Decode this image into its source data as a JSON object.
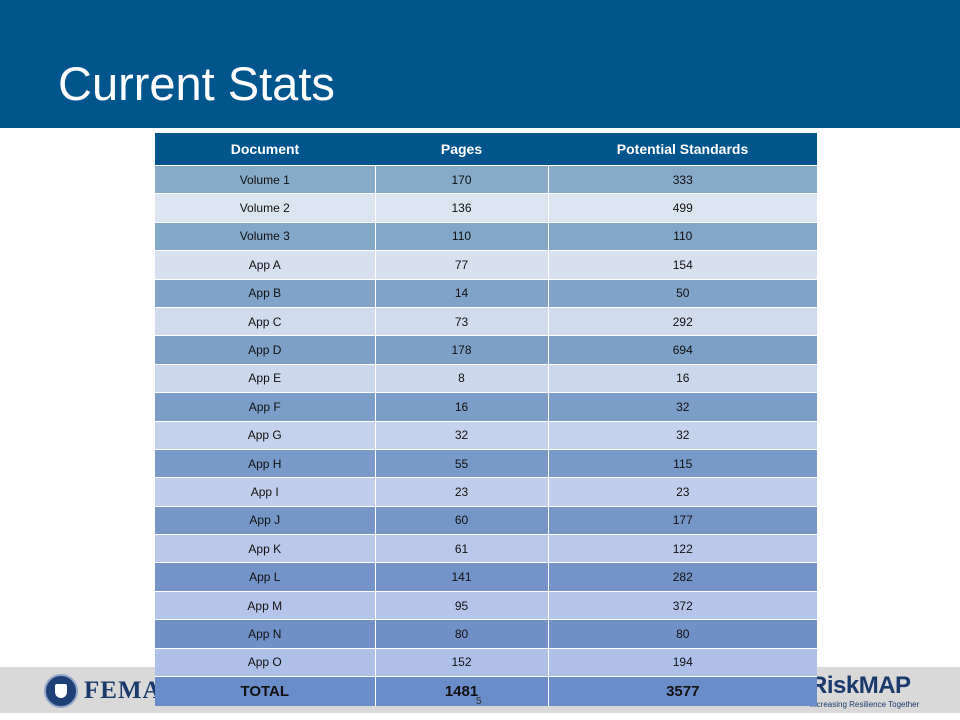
{
  "slide": {
    "title": "Current Stats",
    "page_number": "5",
    "colors": {
      "header": "#00558c",
      "footer": "#d9d9d9"
    }
  },
  "table": {
    "headers": [
      "Document",
      "Pages",
      "Potential Standards"
    ],
    "rows": [
      [
        "Volume 1",
        "170",
        "333"
      ],
      [
        "Volume 2",
        "136",
        "499"
      ],
      [
        "Volume 3",
        "110",
        "110"
      ],
      [
        "App A",
        "77",
        "154"
      ],
      [
        "App B",
        "14",
        "50"
      ],
      [
        "App C",
        "73",
        "292"
      ],
      [
        "App D",
        "178",
        "694"
      ],
      [
        "App E",
        "8",
        "16"
      ],
      [
        "App F",
        "16",
        "32"
      ],
      [
        "App G",
        "32",
        "32"
      ],
      [
        "App H",
        "55",
        "115"
      ],
      [
        "App I",
        "23",
        "23"
      ],
      [
        "App J",
        "60",
        "177"
      ],
      [
        "App K",
        "61",
        "122"
      ],
      [
        "App L",
        "141",
        "282"
      ],
      [
        "App M",
        "95",
        "372"
      ],
      [
        "App N",
        "80",
        "80"
      ],
      [
        "App O",
        "152",
        "194"
      ]
    ],
    "total": [
      "TOTAL",
      "1481",
      "3577"
    ]
  },
  "logos": {
    "left": "FEMA",
    "right": {
      "name": "RiskMAP",
      "tagline": "Increasing Resilience Together"
    }
  }
}
